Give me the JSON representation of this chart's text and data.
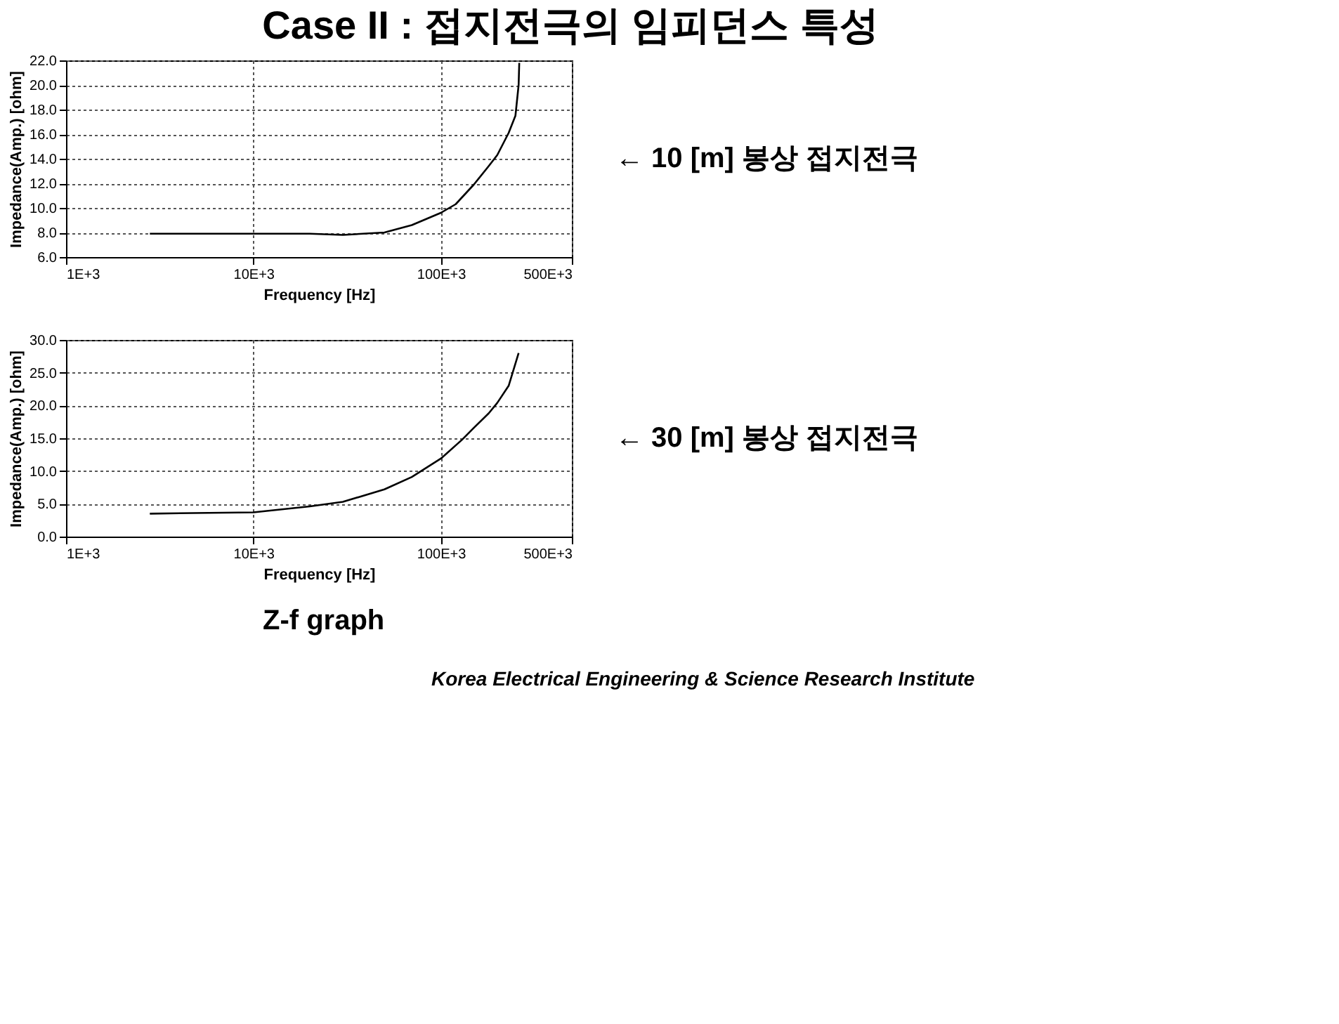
{
  "chart_data": [
    {
      "type": "line",
      "title": "Case II : 접지전극의 임피던스 특성",
      "xlabel": "Frequency [Hz]",
      "ylabel": "Impedance(Amp.) [ohm]",
      "x": [
        2800,
        10000,
        20000,
        30000,
        50000,
        70000,
        100000,
        120000,
        150000,
        180000,
        200000,
        230000,
        250000,
        260000,
        262000
      ],
      "series": [
        {
          "color": "#000000",
          "values": [
            7.9,
            7.9,
            7.9,
            7.8,
            8.0,
            8.6,
            9.6,
            10.3,
            11.9,
            13.4,
            14.3,
            16.1,
            17.5,
            20.0,
            21.8
          ]
        }
      ],
      "log": "x",
      "xlim": [
        1000,
        500000
      ],
      "xticks": [
        {
          "value": 1000,
          "label": "1E+3"
        },
        {
          "value": 10000,
          "label": "10E+3"
        },
        {
          "value": 100000,
          "label": "100E+3"
        },
        {
          "value": 500000,
          "label": "500E+3"
        }
      ],
      "ylim": [
        6,
        22
      ],
      "yticks": [
        {
          "value": 6,
          "label": "6.0"
        },
        {
          "value": 8,
          "label": "8.0"
        },
        {
          "value": 10,
          "label": "10.0"
        },
        {
          "value": 12,
          "label": "12.0"
        },
        {
          "value": 14,
          "label": "14.0"
        },
        {
          "value": 16,
          "label": "16.0"
        },
        {
          "value": 18,
          "label": "18.0"
        },
        {
          "value": 20,
          "label": "20.0"
        },
        {
          "value": 22,
          "label": "22.0"
        }
      ],
      "grid": true,
      "annotations": [
        "← 10 [m] 봉상 접지전극"
      ]
    },
    {
      "type": "line",
      "xlabel": "Frequency [Hz]",
      "ylabel": "Impedance(Amp.) [ohm]",
      "x": [
        2800,
        10000,
        20000,
        30000,
        50000,
        70000,
        100000,
        130000,
        150000,
        180000,
        200000,
        230000,
        260000
      ],
      "series": [
        {
          "color": "#000000",
          "values": [
            3.5,
            3.7,
            4.6,
            5.3,
            7.2,
            9.1,
            11.9,
            14.8,
            16.6,
            18.8,
            20.4,
            23.0,
            28.0
          ]
        }
      ],
      "log": "x",
      "xlim": [
        1000,
        500000
      ],
      "xticks": [
        {
          "value": 1000,
          "label": "1E+3"
        },
        {
          "value": 10000,
          "label": "10E+3"
        },
        {
          "value": 100000,
          "label": "100E+3"
        },
        {
          "value": 500000,
          "label": "500E+3"
        }
      ],
      "ylim": [
        0,
        30
      ],
      "yticks": [
        {
          "value": 0,
          "label": "0.0"
        },
        {
          "value": 5,
          "label": "5.0"
        },
        {
          "value": 10,
          "label": "10.0"
        },
        {
          "value": 15,
          "label": "15.0"
        },
        {
          "value": 20,
          "label": "20.0"
        },
        {
          "value": 25,
          "label": "25.0"
        },
        {
          "value": 30,
          "label": "30.0"
        }
      ],
      "grid": true,
      "annotations": [
        "← 30 [m] 봉상 접지전극",
        "Z-f graph",
        "Korea Electrical Engineering & Science Research Institute"
      ]
    }
  ]
}
